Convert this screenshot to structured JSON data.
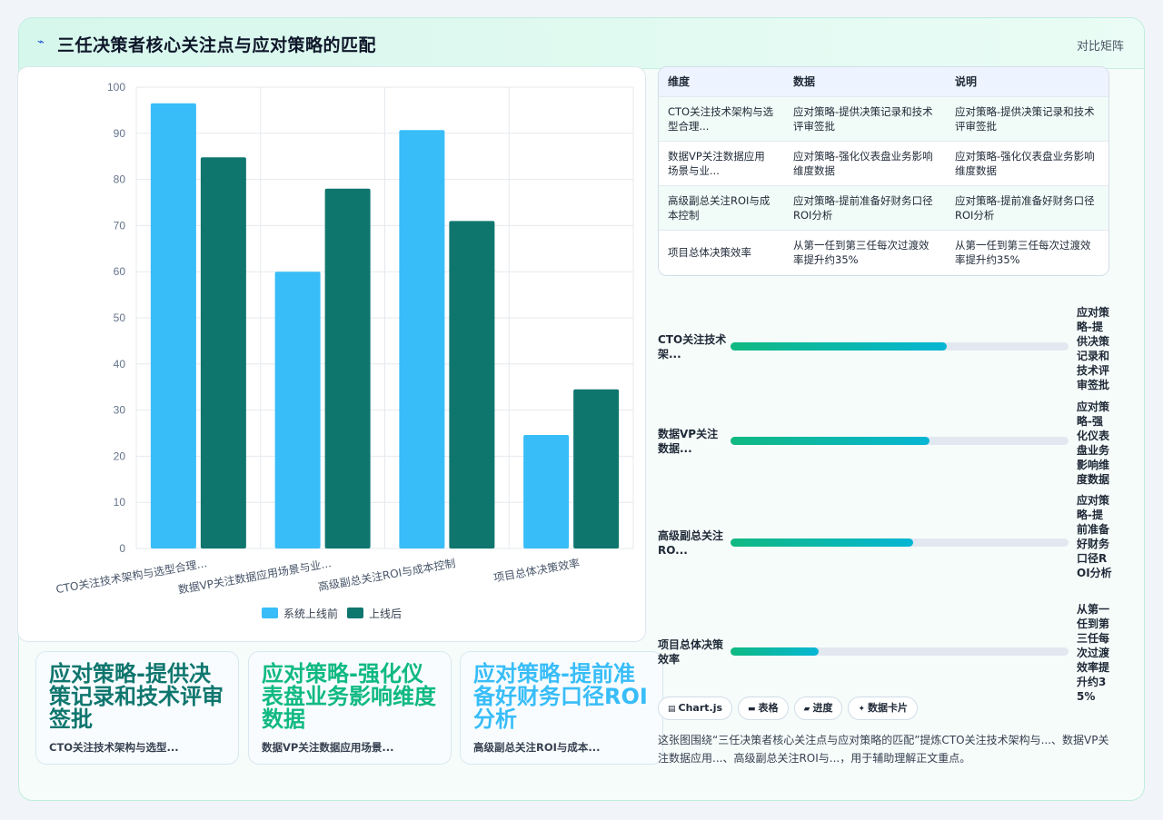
{
  "header": {
    "icon": "sparkle-icon",
    "title": "三任决策者核心关注点与应对策略的匹配",
    "badge": "对比矩阵"
  },
  "chart_data": {
    "type": "bar",
    "categories": [
      "CTO关注技术架构与选型合理...",
      "数据VP关注数据应用场景与业...",
      "高级副总关注ROI与成本控制",
      "项目总体决策效率"
    ],
    "series": [
      {
        "name": "系统上线前",
        "values": [
          96.5,
          60,
          90.7,
          24.6
        ],
        "color": "#38bdf8"
      },
      {
        "name": "上线后",
        "values": [
          84.8,
          78,
          71,
          34.5
        ],
        "color": "#0f766e"
      }
    ],
    "ylim": [
      0,
      100
    ],
    "yticks": [
      0,
      10,
      20,
      30,
      40,
      50,
      60,
      70,
      80,
      90,
      100
    ],
    "grid": true,
    "legend": "bottom"
  },
  "table": {
    "headers": [
      "维度",
      "数据",
      "说明"
    ],
    "rows": [
      [
        "CTO关注技术架构与选型合理...",
        "应对策略-提供决策记录和技术评审签批",
        "应对策略-提供决策记录和技术评审签批"
      ],
      [
        "数据VP关注数据应用场景与业...",
        "应对策略-强化仪表盘业务影响维度数据",
        "应对策略-强化仪表盘业务影响维度数据"
      ],
      [
        "高级副总关注ROI与成本控制",
        "应对策略-提前准备好财务口径ROI分析",
        "应对策略-提前准备好财务口径ROI分析"
      ],
      [
        "项目总体决策效率",
        "从第一任到第三任每次过渡效率提升约35%",
        "从第一任到第三任每次过渡效率提升约35%"
      ]
    ]
  },
  "progress": [
    {
      "label": "CTO关注技术架...",
      "fraction": 0.64,
      "value": "应对策略-提供决策记录和技术评审签批"
    },
    {
      "label": "数据VP关注数据...",
      "fraction": 0.59,
      "value": "应对策略-强化仪表盘业务影响维度数据"
    },
    {
      "label": "高级副总关注RO...",
      "fraction": 0.54,
      "value": "应对策略-提前准备好财务口径ROI分析"
    },
    {
      "label": "项目总体决策效率",
      "fraction": 0.26,
      "value": "从第一任到第三任每次过渡效率提升约35%"
    }
  ],
  "kpis": [
    {
      "value": "应对策略-提供决策记录和技术评审签批",
      "sub": "CTO关注技术架构与选型...",
      "color": "#0f766e"
    },
    {
      "value": "应对策略-强化仪表盘业务影响维度数据",
      "sub": "数据VP关注数据应用场景...",
      "color": "#10b981"
    },
    {
      "value": "应对策略-提前准备好财务口径ROI分析",
      "sub": "高级副总关注ROI与成本...",
      "color": "#38bdf8"
    }
  ],
  "tags": [
    {
      "icon": "chart-icon",
      "glyph": "▤",
      "label": "Chart.js"
    },
    {
      "icon": "table-icon",
      "glyph": "▬",
      "label": "表格"
    },
    {
      "icon": "progress-icon",
      "glyph": "▰",
      "label": "进度"
    },
    {
      "icon": "card-icon",
      "glyph": "✦",
      "label": "数据卡片"
    }
  ],
  "caption": "这张图围绕“三任决策者核心关注点与应对策略的匹配”提炼CTO关注技术架构与...、数据VP关注数据应用...、高级副总关注ROI与...，用于辅助理解正文重点。"
}
